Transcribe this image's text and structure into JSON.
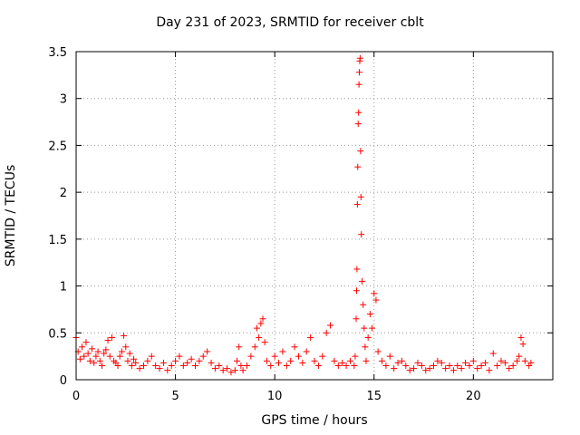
{
  "chart_data": {
    "type": "scatter",
    "title": "Day 231 of 2023, SRMTID for receiver cblt",
    "xlabel": "GPS time / hours",
    "ylabel": "SRMTID / TECUs",
    "xlim": [
      0,
      24
    ],
    "ylim": [
      0,
      3.5
    ],
    "xticks": [
      0,
      5,
      10,
      15,
      20
    ],
    "yticks": [
      0,
      0.5,
      1,
      1.5,
      2,
      2.5,
      3,
      3.5
    ],
    "grid": true,
    "marker": "+",
    "color": "#ff0000",
    "series": [
      {
        "name": "SRMTID",
        "x": [
          0.0,
          0.1,
          0.2,
          0.3,
          0.4,
          0.5,
          0.6,
          0.7,
          0.8,
          0.9,
          1.0,
          1.1,
          1.2,
          1.3,
          1.4,
          1.5,
          1.6,
          1.7,
          1.8,
          1.9,
          2.0,
          2.1,
          2.2,
          2.3,
          2.4,
          2.5,
          2.6,
          2.7,
          2.8,
          2.9,
          3.0,
          3.2,
          3.4,
          3.6,
          3.8,
          4.0,
          4.2,
          4.4,
          4.6,
          4.8,
          5.0,
          5.2,
          5.4,
          5.6,
          5.8,
          6.0,
          6.2,
          6.4,
          6.6,
          6.8,
          7.0,
          7.2,
          7.4,
          7.6,
          7.8,
          8.0,
          8.1,
          8.2,
          8.3,
          8.4,
          8.6,
          8.8,
          9.0,
          9.1,
          9.2,
          9.3,
          9.4,
          9.5,
          9.6,
          9.8,
          10.0,
          10.2,
          10.4,
          10.6,
          10.8,
          11.0,
          11.2,
          11.4,
          11.6,
          11.8,
          12.0,
          12.2,
          12.4,
          12.6,
          12.8,
          13.0,
          13.2,
          13.4,
          13.6,
          13.8,
          14.0,
          14.05,
          14.1,
          14.12,
          14.14,
          14.16,
          14.18,
          14.2,
          14.22,
          14.24,
          14.26,
          14.28,
          14.3,
          14.32,
          14.34,
          14.36,
          14.4,
          14.45,
          14.5,
          14.55,
          14.6,
          14.7,
          14.8,
          14.9,
          15.0,
          15.1,
          15.2,
          15.4,
          15.6,
          15.8,
          16.0,
          16.2,
          16.4,
          16.6,
          16.8,
          17.0,
          17.2,
          17.4,
          17.6,
          17.8,
          18.0,
          18.2,
          18.4,
          18.6,
          18.8,
          19.0,
          19.2,
          19.4,
          19.6,
          19.8,
          20.0,
          20.2,
          20.4,
          20.6,
          20.8,
          21.0,
          21.2,
          21.4,
          21.6,
          21.8,
          22.0,
          22.2,
          22.3,
          22.4,
          22.5,
          22.6,
          22.8,
          22.9
        ],
        "y": [
          0.45,
          0.3,
          0.22,
          0.35,
          0.25,
          0.4,
          0.28,
          0.2,
          0.33,
          0.18,
          0.25,
          0.3,
          0.2,
          0.15,
          0.28,
          0.32,
          0.42,
          0.25,
          0.45,
          0.2,
          0.18,
          0.15,
          0.25,
          0.3,
          0.47,
          0.35,
          0.2,
          0.28,
          0.15,
          0.22,
          0.18,
          0.12,
          0.15,
          0.2,
          0.25,
          0.15,
          0.12,
          0.18,
          0.1,
          0.15,
          0.2,
          0.25,
          0.15,
          0.18,
          0.22,
          0.15,
          0.2,
          0.25,
          0.3,
          0.18,
          0.12,
          0.15,
          0.1,
          0.12,
          0.08,
          0.1,
          0.2,
          0.35,
          0.15,
          0.1,
          0.15,
          0.25,
          0.35,
          0.55,
          0.45,
          0.6,
          0.65,
          0.4,
          0.2,
          0.15,
          0.25,
          0.18,
          0.3,
          0.15,
          0.2,
          0.35,
          0.25,
          0.18,
          0.3,
          0.45,
          0.2,
          0.15,
          0.25,
          0.5,
          0.58,
          0.2,
          0.15,
          0.18,
          0.15,
          0.2,
          0.15,
          0.25,
          0.65,
          0.95,
          1.18,
          1.87,
          2.27,
          2.73,
          2.85,
          3.15,
          3.28,
          3.4,
          3.43,
          2.44,
          1.95,
          1.55,
          1.05,
          0.8,
          0.55,
          0.35,
          0.2,
          0.45,
          0.7,
          0.55,
          0.92,
          0.85,
          0.3,
          0.2,
          0.15,
          0.25,
          0.12,
          0.18,
          0.2,
          0.15,
          0.1,
          0.12,
          0.18,
          0.15,
          0.1,
          0.12,
          0.15,
          0.2,
          0.18,
          0.12,
          0.15,
          0.1,
          0.15,
          0.12,
          0.18,
          0.15,
          0.2,
          0.12,
          0.15,
          0.18,
          0.1,
          0.28,
          0.15,
          0.2,
          0.18,
          0.12,
          0.15,
          0.2,
          0.25,
          0.45,
          0.38,
          0.2,
          0.15,
          0.18
        ]
      }
    ]
  }
}
